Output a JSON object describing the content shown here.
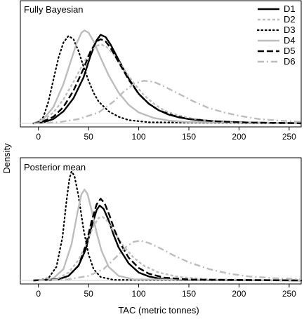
{
  "figure": {
    "ylabel": "Density",
    "xlabel": "TAC (metric tonnes)"
  },
  "chart_data": [
    {
      "type": "line",
      "title": "Fully Bayesian",
      "xlabel": "TAC (metric tonnes)",
      "ylabel": "Density",
      "xlim": [
        -18,
        262
      ],
      "ylim": [
        0,
        1
      ],
      "x_ticks": [
        0,
        50,
        100,
        150,
        200,
        250
      ],
      "grid": false,
      "legend": "top-right",
      "series": [
        {
          "name": "D1",
          "color": "#000000",
          "style": "solid",
          "points": [
            [
              -5,
              0.0
            ],
            [
              5,
              0.01
            ],
            [
              15,
              0.04
            ],
            [
              25,
              0.11
            ],
            [
              35,
              0.23
            ],
            [
              45,
              0.42
            ],
            [
              52,
              0.62
            ],
            [
              58,
              0.76
            ],
            [
              62,
              0.81
            ],
            [
              67,
              0.79
            ],
            [
              72,
              0.72
            ],
            [
              80,
              0.58
            ],
            [
              90,
              0.41
            ],
            [
              100,
              0.27
            ],
            [
              110,
              0.18
            ],
            [
              120,
              0.12
            ],
            [
              130,
              0.08
            ],
            [
              140,
              0.055
            ],
            [
              150,
              0.04
            ],
            [
              160,
              0.03
            ],
            [
              170,
              0.022
            ],
            [
              190,
              0.013
            ],
            [
              210,
              0.008
            ],
            [
              230,
              0.005
            ],
            [
              262,
              0.002
            ]
          ]
        },
        {
          "name": "D2",
          "color": "#bdbdbd",
          "style": "dashed",
          "points": [
            [
              -5,
              0.0
            ],
            [
              5,
              0.03
            ],
            [
              15,
              0.1
            ],
            [
              25,
              0.22
            ],
            [
              35,
              0.38
            ],
            [
              45,
              0.55
            ],
            [
              52,
              0.66
            ],
            [
              58,
              0.71
            ],
            [
              63,
              0.72
            ],
            [
              68,
              0.7
            ],
            [
              75,
              0.63
            ],
            [
              85,
              0.5
            ],
            [
              95,
              0.37
            ],
            [
              105,
              0.26
            ],
            [
              115,
              0.18
            ],
            [
              125,
              0.12
            ],
            [
              135,
              0.085
            ],
            [
              150,
              0.05
            ],
            [
              170,
              0.025
            ],
            [
              200,
              0.01
            ],
            [
              262,
              0.002
            ]
          ]
        },
        {
          "name": "D3",
          "color": "#000000",
          "style": "dotted",
          "points": [
            [
              -5,
              0.0
            ],
            [
              0,
              0.01
            ],
            [
              5,
              0.06
            ],
            [
              10,
              0.2
            ],
            [
              15,
              0.4
            ],
            [
              20,
              0.6
            ],
            [
              25,
              0.74
            ],
            [
              30,
              0.8
            ],
            [
              35,
              0.77
            ],
            [
              40,
              0.66
            ],
            [
              45,
              0.52
            ],
            [
              50,
              0.39
            ],
            [
              55,
              0.28
            ],
            [
              60,
              0.2
            ],
            [
              70,
              0.11
            ],
            [
              80,
              0.06
            ],
            [
              90,
              0.03
            ],
            [
              110,
              0.01
            ],
            [
              262,
              0.0
            ]
          ]
        },
        {
          "name": "D4",
          "color": "#bdbdbd",
          "style": "solid",
          "points": [
            [
              -5,
              0.0
            ],
            [
              5,
              0.04
            ],
            [
              15,
              0.15
            ],
            [
              25,
              0.36
            ],
            [
              32,
              0.56
            ],
            [
              38,
              0.73
            ],
            [
              43,
              0.83
            ],
            [
              46,
              0.85
            ],
            [
              50,
              0.83
            ],
            [
              55,
              0.75
            ],
            [
              62,
              0.6
            ],
            [
              70,
              0.44
            ],
            [
              80,
              0.28
            ],
            [
              90,
              0.17
            ],
            [
              100,
              0.1
            ],
            [
              115,
              0.05
            ],
            [
              130,
              0.025
            ],
            [
              150,
              0.012
            ],
            [
              262,
              0.001
            ]
          ]
        },
        {
          "name": "D5",
          "color": "#000000",
          "style": "longdash",
          "points": [
            [
              -5,
              0.0
            ],
            [
              5,
              0.02
            ],
            [
              15,
              0.06
            ],
            [
              25,
              0.15
            ],
            [
              35,
              0.3
            ],
            [
              45,
              0.5
            ],
            [
              52,
              0.66
            ],
            [
              58,
              0.75
            ],
            [
              62,
              0.77
            ],
            [
              67,
              0.75
            ],
            [
              72,
              0.69
            ],
            [
              80,
              0.56
            ],
            [
              90,
              0.4
            ],
            [
              100,
              0.27
            ],
            [
              110,
              0.18
            ],
            [
              120,
              0.12
            ],
            [
              135,
              0.07
            ],
            [
              150,
              0.04
            ],
            [
              175,
              0.02
            ],
            [
              210,
              0.008
            ],
            [
              262,
              0.002
            ]
          ]
        },
        {
          "name": "D6",
          "color": "#bdbdbd",
          "style": "dashdot",
          "points": [
            [
              -5,
              0.0
            ],
            [
              20,
              0.01
            ],
            [
              40,
              0.04
            ],
            [
              60,
              0.1
            ],
            [
              75,
              0.2
            ],
            [
              85,
              0.29
            ],
            [
              95,
              0.36
            ],
            [
              105,
              0.39
            ],
            [
              115,
              0.38
            ],
            [
              125,
              0.34
            ],
            [
              140,
              0.27
            ],
            [
              155,
              0.2
            ],
            [
              170,
              0.14
            ],
            [
              185,
              0.1
            ],
            [
              200,
              0.07
            ],
            [
              220,
              0.04
            ],
            [
              240,
              0.025
            ],
            [
              262,
              0.015
            ]
          ]
        }
      ]
    },
    {
      "type": "line",
      "title": "Posterior mean",
      "xlabel": "TAC (metric tonnes)",
      "ylabel": "Density",
      "xlim": [
        -18,
        262
      ],
      "ylim": [
        0,
        1
      ],
      "x_ticks": [
        0,
        50,
        100,
        150,
        200,
        250
      ],
      "grid": false,
      "legend": "",
      "series": [
        {
          "name": "D1",
          "color": "#000000",
          "style": "solid",
          "points": [
            [
              -5,
              0.0
            ],
            [
              20,
              0.01
            ],
            [
              30,
              0.04
            ],
            [
              40,
              0.13
            ],
            [
              47,
              0.27
            ],
            [
              53,
              0.47
            ],
            [
              58,
              0.62
            ],
            [
              61,
              0.66
            ],
            [
              65,
              0.63
            ],
            [
              70,
              0.53
            ],
            [
              75,
              0.4
            ],
            [
              80,
              0.29
            ],
            [
              90,
              0.15
            ],
            [
              100,
              0.07
            ],
            [
              110,
              0.035
            ],
            [
              120,
              0.017
            ],
            [
              140,
              0.005
            ],
            [
              262,
              0.0
            ]
          ]
        },
        {
          "name": "D2",
          "color": "#bdbdbd",
          "style": "dashed",
          "points": [
            [
              -5,
              0.0
            ],
            [
              20,
              0.02
            ],
            [
              30,
              0.07
            ],
            [
              40,
              0.18
            ],
            [
              48,
              0.33
            ],
            [
              55,
              0.48
            ],
            [
              60,
              0.55
            ],
            [
              64,
              0.56
            ],
            [
              68,
              0.53
            ],
            [
              75,
              0.43
            ],
            [
              85,
              0.3
            ],
            [
              95,
              0.2
            ],
            [
              105,
              0.13
            ],
            [
              120,
              0.07
            ],
            [
              140,
              0.03
            ],
            [
              170,
              0.01
            ],
            [
              262,
              0.002
            ]
          ]
        },
        {
          "name": "D3",
          "color": "#000000",
          "style": "dotted",
          "points": [
            [
              0,
              0.0
            ],
            [
              10,
              0.02
            ],
            [
              18,
              0.12
            ],
            [
              24,
              0.38
            ],
            [
              28,
              0.7
            ],
            [
              31,
              0.9
            ],
            [
              33,
              0.96
            ],
            [
              36,
              0.92
            ],
            [
              40,
              0.74
            ],
            [
              45,
              0.45
            ],
            [
              50,
              0.23
            ],
            [
              55,
              0.1
            ],
            [
              62,
              0.03
            ],
            [
              75,
              0.005
            ],
            [
              262,
              0.0
            ]
          ]
        },
        {
          "name": "D4",
          "color": "#bdbdbd",
          "style": "solid",
          "points": [
            [
              0,
              0.0
            ],
            [
              15,
              0.02
            ],
            [
              25,
              0.1
            ],
            [
              33,
              0.32
            ],
            [
              39,
              0.6
            ],
            [
              43,
              0.76
            ],
            [
              46,
              0.8
            ],
            [
              49,
              0.76
            ],
            [
              53,
              0.62
            ],
            [
              58,
              0.42
            ],
            [
              63,
              0.26
            ],
            [
              70,
              0.12
            ],
            [
              80,
              0.04
            ],
            [
              95,
              0.01
            ],
            [
              262,
              0.0
            ]
          ]
        },
        {
          "name": "D5",
          "color": "#000000",
          "style": "longdash",
          "points": [
            [
              -5,
              0.0
            ],
            [
              20,
              0.01
            ],
            [
              30,
              0.04
            ],
            [
              40,
              0.13
            ],
            [
              47,
              0.3
            ],
            [
              53,
              0.52
            ],
            [
              58,
              0.67
            ],
            [
              62,
              0.72
            ],
            [
              66,
              0.68
            ],
            [
              71,
              0.57
            ],
            [
              76,
              0.44
            ],
            [
              82,
              0.32
            ],
            [
              90,
              0.2
            ],
            [
              100,
              0.11
            ],
            [
              110,
              0.06
            ],
            [
              125,
              0.025
            ],
            [
              150,
              0.008
            ],
            [
              262,
              0.0
            ]
          ]
        },
        {
          "name": "D6",
          "color": "#bdbdbd",
          "style": "dashdot",
          "points": [
            [
              0,
              0.0
            ],
            [
              30,
              0.01
            ],
            [
              50,
              0.04
            ],
            [
              65,
              0.1
            ],
            [
              78,
              0.21
            ],
            [
              88,
              0.3
            ],
            [
              95,
              0.34
            ],
            [
              102,
              0.35
            ],
            [
              110,
              0.33
            ],
            [
              120,
              0.29
            ],
            [
              135,
              0.22
            ],
            [
              150,
              0.16
            ],
            [
              170,
              0.1
            ],
            [
              190,
              0.06
            ],
            [
              210,
              0.035
            ],
            [
              235,
              0.02
            ],
            [
              262,
              0.012
            ]
          ]
        }
      ]
    }
  ]
}
